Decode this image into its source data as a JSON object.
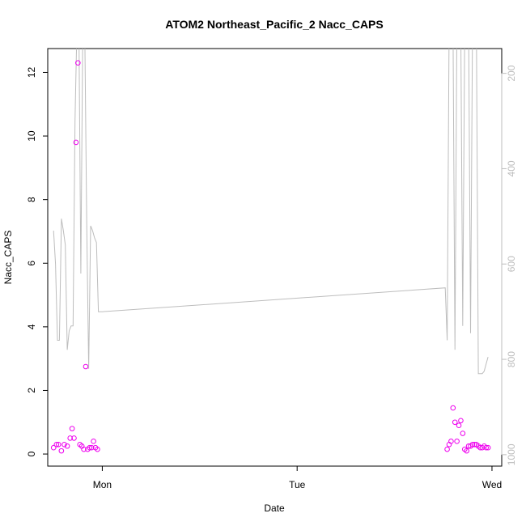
{
  "chart_data": {
    "type": "scatter",
    "title": "ATOM2 Northeast_Pacific_2 Nacc_CAPS",
    "xlabel": "Date",
    "ylabel": "Nacc_CAPS",
    "x_ticks": [
      "Mon",
      "Tue",
      "Wed"
    ],
    "x_tick_positions": [
      0,
      1,
      2
    ],
    "xlim": [
      -0.28,
      2.05
    ],
    "ylim": [
      -0.38,
      12.75
    ],
    "y_ticks": [
      0,
      2,
      4,
      6,
      8,
      10,
      12
    ],
    "y2_ticks": [
      200,
      400,
      600,
      800,
      1000
    ],
    "y2lim": [
      1024,
      148
    ],
    "grid": false,
    "colors": {
      "points": "#ee00ee",
      "line": "#bdbdbd",
      "axis": "#000000",
      "right_axis": "#bdbdbd"
    },
    "points": {
      "x": [
        -0.25,
        -0.235,
        -0.225,
        -0.21,
        -0.195,
        -0.18,
        -0.165,
        -0.155,
        -0.145,
        -0.135,
        -0.125,
        -0.115,
        -0.105,
        -0.095,
        -0.085,
        -0.075,
        -0.065,
        -0.055,
        -0.045,
        -0.035,
        -0.025,
        1.77,
        1.78,
        1.79,
        1.8,
        1.81,
        1.82,
        1.83,
        1.84,
        1.85,
        1.86,
        1.87,
        1.88,
        1.89,
        1.9,
        1.91,
        1.92,
        1.93,
        1.94,
        1.95,
        1.96,
        1.97,
        1.98
      ],
      "y": [
        0.2,
        0.3,
        0.3,
        0.1,
        0.3,
        0.25,
        0.5,
        0.8,
        0.5,
        9.8,
        12.3,
        0.3,
        0.25,
        0.15,
        2.75,
        0.15,
        0.2,
        0.2,
        0.4,
        0.2,
        0.15,
        0.15,
        0.3,
        0.4,
        1.45,
        1.0,
        0.4,
        0.9,
        1.05,
        0.65,
        0.15,
        0.1,
        0.25,
        0.25,
        0.3,
        0.3,
        0.3,
        0.25,
        0.2,
        0.2,
        0.25,
        0.2,
        0.2
      ]
    },
    "line_series": {
      "axis": "right",
      "x": [
        -0.25,
        -0.24,
        -0.23,
        -0.22,
        -0.21,
        -0.2,
        -0.19,
        -0.18,
        -0.17,
        -0.16,
        -0.15,
        -0.14,
        -0.13,
        -0.12,
        -0.11,
        -0.1,
        -0.09,
        -0.08,
        -0.07,
        -0.06,
        -0.05,
        -0.04,
        -0.03,
        -0.02,
        -0.01,
        0.0,
        1.76,
        1.77,
        1.78,
        1.79,
        1.8,
        1.81,
        1.82,
        1.83,
        1.84,
        1.85,
        1.86,
        1.87,
        1.88,
        1.89,
        1.9,
        1.91,
        1.92,
        1.93,
        1.94,
        1.95,
        1.96,
        1.97,
        1.98
      ],
      "y": [
        530,
        600,
        760,
        760,
        505,
        530,
        560,
        780,
        740,
        730,
        730,
        300,
        100,
        100,
        620,
        100,
        100,
        520,
        820,
        520,
        530,
        545,
        555,
        700,
        700,
        700,
        650,
        760,
        100,
        100,
        100,
        780,
        100,
        100,
        100,
        730,
        100,
        100,
        100,
        745,
        100,
        100,
        100,
        830,
        830,
        830,
        825,
        810,
        795
      ]
    }
  }
}
